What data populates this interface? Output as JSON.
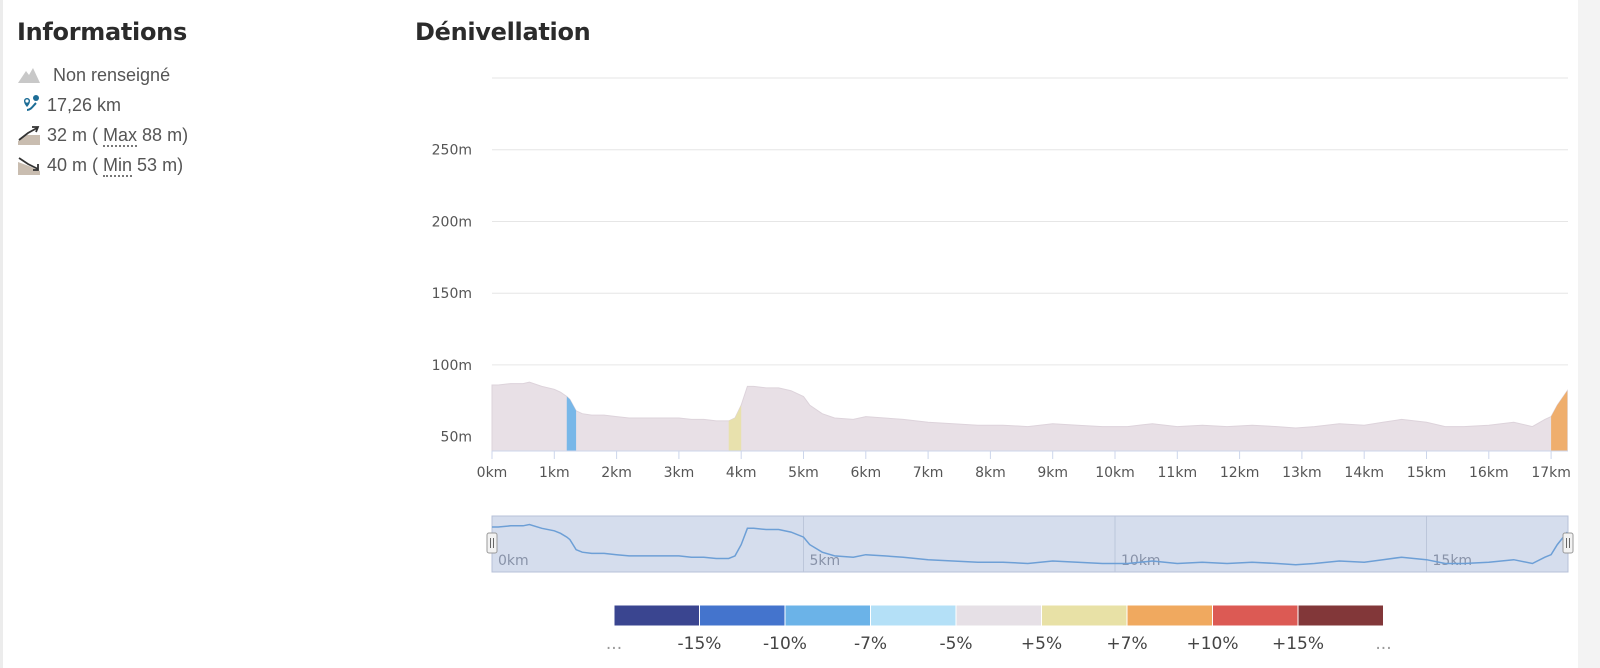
{
  "info": {
    "title": "Informations",
    "difficulty": "Non renseigné",
    "distance": "17,26 km",
    "ascent_value": "32 m (",
    "ascent_abbr": "Max",
    "ascent_rest": " 88 m)",
    "descent_value": "40 m (",
    "descent_abbr": "Min",
    "descent_rest": " 53 m)",
    "icons": [
      "mountain-icon",
      "route-pin-icon",
      "ascent-icon",
      "descent-icon"
    ],
    "icon_color": "#1d6d96"
  },
  "elevation": {
    "title": "Dénivellation"
  },
  "chart_data": {
    "type": "area",
    "xlabel": "",
    "ylabel": "",
    "xlim": [
      0,
      17.26
    ],
    "ylim": [
      40,
      300
    ],
    "grid": true,
    "x_ticks": [
      0,
      1,
      2,
      3,
      4,
      5,
      6,
      7,
      8,
      9,
      10,
      11,
      12,
      13,
      14,
      15,
      16,
      17
    ],
    "x_tick_labels": [
      "0km",
      "1km",
      "2km",
      "3km",
      "4km",
      "5km",
      "6km",
      "7km",
      "8km",
      "9km",
      "10km",
      "11km",
      "12km",
      "13km",
      "14km",
      "15km",
      "16km",
      "17km"
    ],
    "y_ticks": [
      50,
      100,
      150,
      200,
      250
    ],
    "y_tick_labels": [
      "50m",
      "100m",
      "150m",
      "200m",
      "250m"
    ],
    "series": [
      {
        "x": [
          0,
          0.1,
          0.3,
          0.5,
          0.6,
          0.8,
          1.0,
          1.1,
          1.2,
          1.25,
          1.35,
          1.45,
          1.6,
          1.8,
          2.0,
          2.2,
          2.4,
          2.6,
          2.8,
          3.0,
          3.2,
          3.4,
          3.6,
          3.8,
          3.9,
          4.0,
          4.1,
          4.2,
          4.4,
          4.6,
          4.8,
          5.0,
          5.1,
          5.3,
          5.5,
          5.8,
          6.0,
          6.3,
          6.6,
          7.0,
          7.4,
          7.8,
          8.2,
          8.6,
          9.0,
          9.4,
          9.8,
          10.2,
          10.6,
          11.0,
          11.4,
          11.8,
          12.2,
          12.6,
          12.9,
          13.2,
          13.6,
          14.0,
          14.3,
          14.6,
          15.0,
          15.3,
          15.6,
          16.0,
          16.4,
          16.7,
          16.9,
          17.0,
          17.1,
          17.26
        ],
        "y": [
          86,
          86,
          87,
          87,
          88,
          85,
          83,
          81,
          78,
          76,
          68,
          66,
          65,
          65,
          64,
          63,
          63,
          63,
          63,
          63,
          62,
          62,
          61,
          61,
          63,
          72,
          85,
          85,
          84,
          84,
          82,
          78,
          72,
          66,
          63,
          62,
          64,
          63,
          62,
          60,
          59,
          58,
          58,
          57,
          59,
          58,
          57,
          57,
          59,
          57,
          58,
          57,
          58,
          57,
          56,
          57,
          59,
          58,
          60,
          62,
          60,
          57,
          57,
          58,
          60,
          57,
          62,
          64,
          72,
          82
        ],
        "gradient_colors": [
          {
            "from": 1.2,
            "to": 1.4,
            "class": "-7%"
          },
          {
            "from": 3.8,
            "to": 4.0,
            "class": "+5%"
          },
          {
            "from": 17.0,
            "to": 17.26,
            "class": "+7%"
          }
        ]
      }
    ],
    "navigator_labels": [
      "0km",
      "5km",
      "10km",
      "15km"
    ],
    "legend": {
      "colors": [
        "#3a4590",
        "#4474cd",
        "#6bb3e8",
        "#b4e0f7",
        "#e6e0e6",
        "#e8e1a6",
        "#f0a95f",
        "#dc5a54",
        "#823739"
      ],
      "labels": [
        "...",
        "-15%",
        "-10%",
        "-7%",
        "-5%",
        "+5%",
        "+7%",
        "+10%",
        "+15%",
        "..."
      ]
    }
  }
}
